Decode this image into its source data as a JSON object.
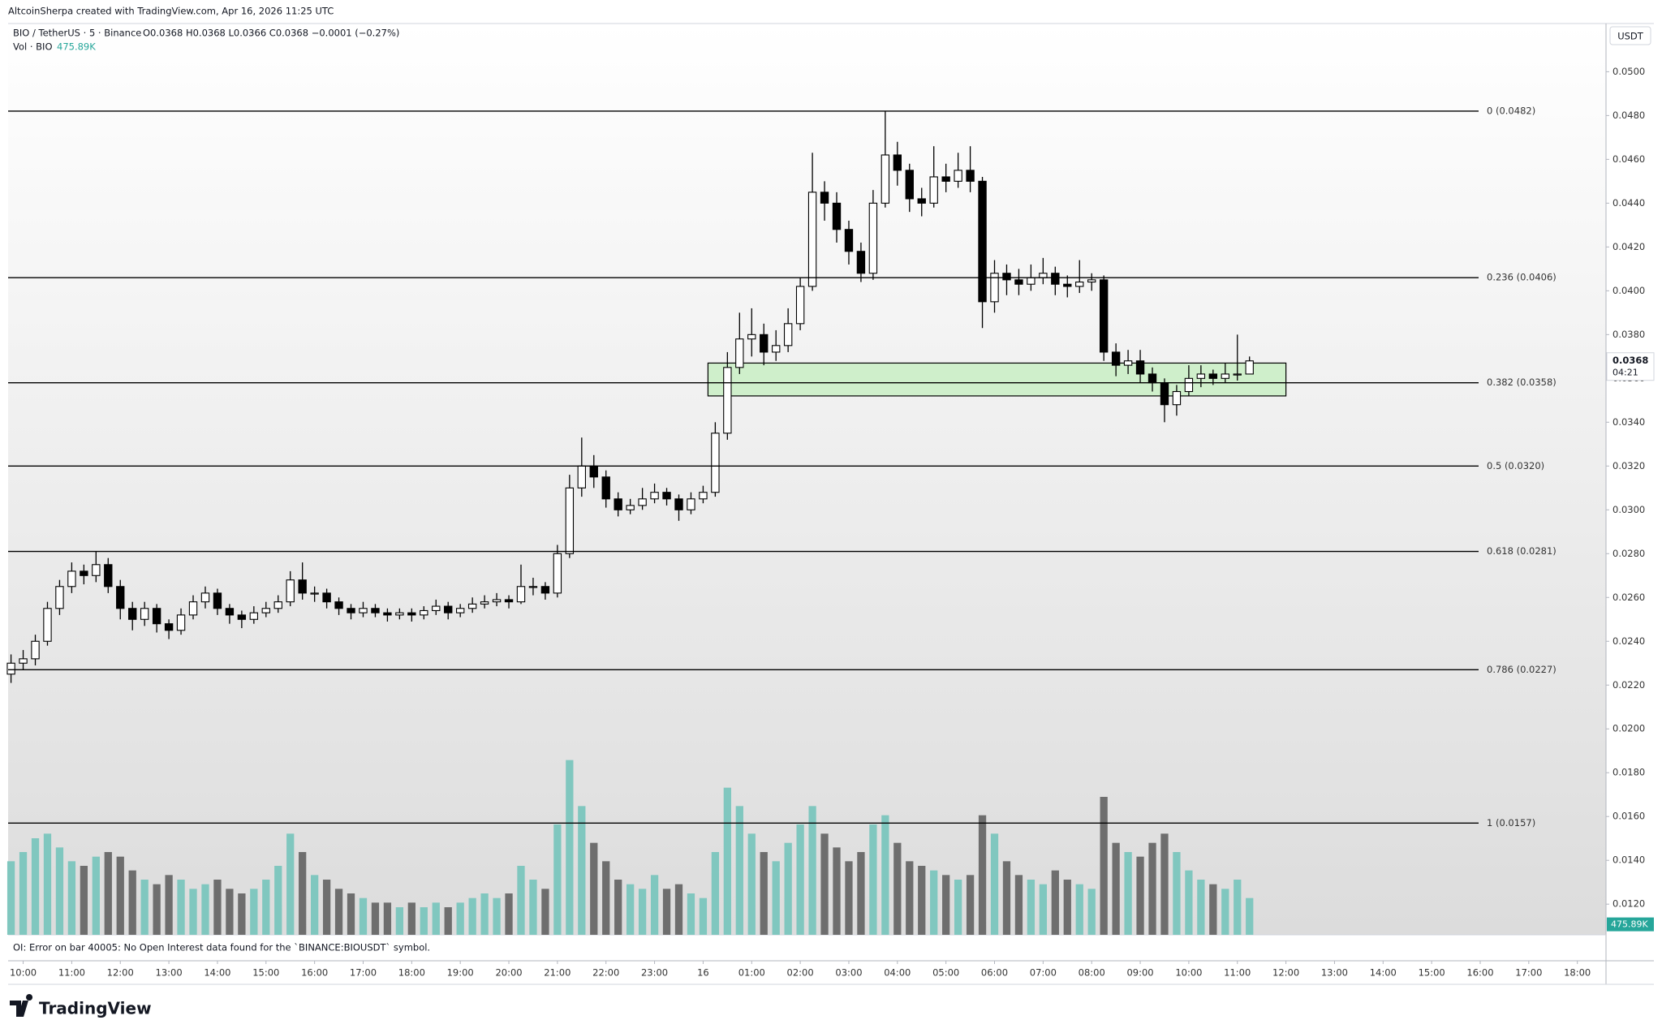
{
  "header": {
    "credit": "AltcoinSherpa created with TradingView.com, Apr 16, 2026 11:25 UTC",
    "symbol": "BIO / TetherUS · 5 · Binance",
    "ohlc": "O0.0368 H0.0368 L0.0366 C0.0368 −0.0001 (−0.27%)",
    "volume_label": "Vol · BIO"
  },
  "chart_data": {
    "type": "candlestick",
    "currency": "USDT",
    "countdown": "04:21",
    "last_price": 0.0368,
    "last_volume": {
      "value": 475.89,
      "label": "475.89K"
    },
    "xlim": [
      9.69,
      42.59
    ],
    "ylim": [
      0.0106,
      0.0522
    ],
    "volume_lim": [
      0,
      30000
    ],
    "up_color": "#ffffff",
    "down_color": "#000000",
    "wick_color": "#000000",
    "volume_up_color": "#80c7bf",
    "volume_down_color": "#6e6e6e",
    "xticks": [
      {
        "value": 10,
        "label": "10:00"
      },
      {
        "value": 11,
        "label": "11:00"
      },
      {
        "value": 12,
        "label": "12:00"
      },
      {
        "value": 13,
        "label": "13:00"
      },
      {
        "value": 14,
        "label": "14:00"
      },
      {
        "value": 15,
        "label": "15:00"
      },
      {
        "value": 16,
        "label": "16:00"
      },
      {
        "value": 17,
        "label": "17:00"
      },
      {
        "value": 18,
        "label": "18:00"
      },
      {
        "value": 19,
        "label": "19:00"
      },
      {
        "value": 20,
        "label": "20:00"
      },
      {
        "value": 21,
        "label": "21:00"
      },
      {
        "value": 22,
        "label": "22:00"
      },
      {
        "value": 23,
        "label": "23:00"
      },
      {
        "value": 24,
        "label": "16"
      },
      {
        "value": 25,
        "label": "01:00"
      },
      {
        "value": 26,
        "label": "02:00"
      },
      {
        "value": 27,
        "label": "03:00"
      },
      {
        "value": 28,
        "label": "04:00"
      },
      {
        "value": 29,
        "label": "05:00"
      },
      {
        "value": 30,
        "label": "06:00"
      },
      {
        "value": 31,
        "label": "07:00"
      },
      {
        "value": 32,
        "label": "08:00"
      },
      {
        "value": 33,
        "label": "09:00"
      },
      {
        "value": 34,
        "label": "10:00"
      },
      {
        "value": 35,
        "label": "11:00"
      },
      {
        "value": 36,
        "label": "12:00"
      },
      {
        "value": 37,
        "label": "13:00"
      },
      {
        "value": 38,
        "label": "14:00"
      },
      {
        "value": 39,
        "label": "15:00"
      },
      {
        "value": 40,
        "label": "16:00"
      },
      {
        "value": 41,
        "label": "17:00"
      },
      {
        "value": 42,
        "label": "18:00"
      }
    ],
    "yticks": [
      {
        "value": 0.012,
        "label": "0.0120"
      },
      {
        "value": 0.014,
        "label": "0.0140"
      },
      {
        "value": 0.016,
        "label": "0.0160"
      },
      {
        "value": 0.018,
        "label": "0.0180"
      },
      {
        "value": 0.02,
        "label": "0.0200"
      },
      {
        "value": 0.022,
        "label": "0.0220"
      },
      {
        "value": 0.024,
        "label": "0.0240"
      },
      {
        "value": 0.026,
        "label": "0.0260"
      },
      {
        "value": 0.028,
        "label": "0.0280"
      },
      {
        "value": 0.03,
        "label": "0.0300"
      },
      {
        "value": 0.032,
        "label": "0.0320"
      },
      {
        "value": 0.034,
        "label": "0.0340"
      },
      {
        "value": 0.036,
        "label": "0.0360"
      },
      {
        "value": 0.038,
        "label": "0.0380"
      },
      {
        "value": 0.04,
        "label": "0.0400"
      },
      {
        "value": 0.042,
        "label": "0.0420"
      },
      {
        "value": 0.044,
        "label": "0.0440"
      },
      {
        "value": 0.046,
        "label": "0.0460"
      },
      {
        "value": 0.048,
        "label": "0.0480"
      },
      {
        "value": 0.05,
        "label": "0.0500"
      }
    ],
    "levels": [
      {
        "value": 0.0482,
        "label": "0 (0.0482)"
      },
      {
        "value": 0.0406,
        "label": "0.236 (0.0406)"
      },
      {
        "value": 0.0358,
        "label": "0.382 (0.0358)"
      },
      {
        "value": 0.032,
        "label": "0.5 (0.0320)"
      },
      {
        "value": 0.0281,
        "label": "0.618 (0.0281)"
      },
      {
        "value": 0.0227,
        "label": "0.786 (0.0227)"
      },
      {
        "value": 0.0157,
        "label": "1 (0.0157)"
      }
    ],
    "zone": {
      "x": [
        24.1,
        36.0
      ],
      "y": [
        0.0352,
        0.0367
      ],
      "color": "#c9efc4"
    },
    "x": [
      9.75,
      10,
      10.25,
      10.5,
      10.75,
      11,
      11.25,
      11.5,
      11.75,
      12,
      12.25,
      12.5,
      12.75,
      13,
      13.25,
      13.5,
      13.75,
      14,
      14.25,
      14.5,
      14.75,
      15,
      15.25,
      15.5,
      15.75,
      16,
      16.25,
      16.5,
      16.75,
      17,
      17.25,
      17.5,
      17.75,
      18,
      18.25,
      18.5,
      18.75,
      19,
      19.25,
      19.5,
      19.75,
      20,
      20.25,
      20.5,
      20.75,
      21,
      21.25,
      21.5,
      21.75,
      22,
      22.25,
      22.5,
      22.75,
      23,
      23.25,
      23.5,
      23.75,
      24,
      24.25,
      24.5,
      24.75,
      25,
      25.25,
      25.5,
      25.75,
      26,
      26.25,
      26.5,
      26.75,
      27,
      27.25,
      27.5,
      27.75,
      28,
      28.25,
      28.5,
      28.75,
      29,
      29.25,
      29.5,
      29.75,
      30,
      30.25,
      30.5,
      30.75,
      31,
      31.25,
      31.5,
      31.75,
      32,
      32.25,
      32.5,
      32.75,
      33,
      33.25,
      33.5,
      33.75,
      34,
      34.25,
      34.5,
      34.75,
      35,
      35.25
    ],
    "open": [
      0.0225,
      0.023,
      0.0232,
      0.024,
      0.0255,
      0.0265,
      0.0272,
      0.027,
      0.0275,
      0.0265,
      0.0255,
      0.025,
      0.0255,
      0.0248,
      0.0245,
      0.0252,
      0.0258,
      0.0262,
      0.0255,
      0.0252,
      0.025,
      0.0253,
      0.0255,
      0.0258,
      0.0268,
      0.0262,
      0.0262,
      0.0258,
      0.0255,
      0.0253,
      0.0255,
      0.0253,
      0.0252,
      0.0253,
      0.0252,
      0.0254,
      0.0256,
      0.0253,
      0.0255,
      0.0257,
      0.0258,
      0.0259,
      0.0258,
      0.0265,
      0.0265,
      0.0262,
      0.028,
      0.031,
      0.032,
      0.0315,
      0.0305,
      0.03,
      0.0302,
      0.0305,
      0.0308,
      0.0305,
      0.03,
      0.0305,
      0.0308,
      0.0335,
      0.0365,
      0.0378,
      0.038,
      0.0372,
      0.0375,
      0.0385,
      0.0402,
      0.0445,
      0.044,
      0.0428,
      0.0418,
      0.0408,
      0.044,
      0.0462,
      0.0455,
      0.0442,
      0.044,
      0.0452,
      0.045,
      0.0455,
      0.045,
      0.0395,
      0.0408,
      0.0405,
      0.0403,
      0.0406,
      0.0408,
      0.0403,
      0.0402,
      0.0404,
      0.0405,
      0.0372,
      0.0366,
      0.0368,
      0.0362,
      0.0358,
      0.0348,
      0.0354,
      0.036,
      0.0362,
      0.036,
      0.0362,
      0.0362
    ],
    "high": [
      0.0234,
      0.0236,
      0.0243,
      0.0258,
      0.0268,
      0.0276,
      0.0275,
      0.0281,
      0.0278,
      0.0268,
      0.0258,
      0.0258,
      0.0257,
      0.025,
      0.0255,
      0.0261,
      0.0265,
      0.0264,
      0.0257,
      0.0254,
      0.0256,
      0.0258,
      0.0261,
      0.0272,
      0.0276,
      0.0265,
      0.0264,
      0.026,
      0.0257,
      0.0258,
      0.0257,
      0.0255,
      0.0255,
      0.0255,
      0.0256,
      0.0259,
      0.0258,
      0.0257,
      0.026,
      0.0261,
      0.0262,
      0.0261,
      0.0275,
      0.0269,
      0.0267,
      0.0284,
      0.0316,
      0.0333,
      0.0325,
      0.0318,
      0.0308,
      0.0305,
      0.031,
      0.0312,
      0.031,
      0.0307,
      0.0308,
      0.0311,
      0.034,
      0.0372,
      0.039,
      0.0392,
      0.0385,
      0.0382,
      0.0392,
      0.0406,
      0.0463,
      0.045,
      0.0445,
      0.0432,
      0.0422,
      0.0446,
      0.0482,
      0.0468,
      0.0458,
      0.0447,
      0.0466,
      0.0458,
      0.0463,
      0.0466,
      0.0452,
      0.0414,
      0.0412,
      0.041,
      0.0412,
      0.0415,
      0.0411,
      0.0407,
      0.0414,
      0.0408,
      0.0407,
      0.0376,
      0.0373,
      0.0373,
      0.0365,
      0.036,
      0.0357,
      0.0366,
      0.0366,
      0.0364,
      0.0367,
      0.038,
      0.037
    ],
    "low": [
      0.0221,
      0.0227,
      0.0229,
      0.0238,
      0.0252,
      0.0262,
      0.0266,
      0.0267,
      0.0262,
      0.025,
      0.0245,
      0.0247,
      0.0244,
      0.0241,
      0.0243,
      0.025,
      0.0255,
      0.0252,
      0.0248,
      0.0246,
      0.0248,
      0.0251,
      0.0253,
      0.0256,
      0.0259,
      0.0258,
      0.0255,
      0.0252,
      0.025,
      0.0251,
      0.0251,
      0.0249,
      0.025,
      0.0249,
      0.025,
      0.0252,
      0.025,
      0.0251,
      0.0253,
      0.0255,
      0.0256,
      0.0255,
      0.0257,
      0.0261,
      0.0259,
      0.026,
      0.0278,
      0.0306,
      0.031,
      0.0301,
      0.0297,
      0.0298,
      0.03,
      0.0303,
      0.0302,
      0.0295,
      0.0298,
      0.0303,
      0.0306,
      0.0332,
      0.0362,
      0.037,
      0.0366,
      0.0368,
      0.0372,
      0.0382,
      0.04,
      0.0432,
      0.0422,
      0.0412,
      0.0404,
      0.0405,
      0.0438,
      0.0448,
      0.0436,
      0.0434,
      0.0438,
      0.0445,
      0.0447,
      0.0445,
      0.0383,
      0.039,
      0.0398,
      0.0398,
      0.04,
      0.0403,
      0.0398,
      0.0397,
      0.0399,
      0.04,
      0.0368,
      0.0361,
      0.0362,
      0.0358,
      0.0354,
      0.034,
      0.0343,
      0.0352,
      0.0356,
      0.0357,
      0.0358,
      0.0359,
      0.0366
    ],
    "close": [
      0.023,
      0.0232,
      0.024,
      0.0255,
      0.0265,
      0.0272,
      0.027,
      0.0275,
      0.0265,
      0.0255,
      0.025,
      0.0255,
      0.0248,
      0.0245,
      0.0252,
      0.0258,
      0.0262,
      0.0255,
      0.0252,
      0.025,
      0.0253,
      0.0255,
      0.0258,
      0.0268,
      0.0262,
      0.0262,
      0.0258,
      0.0255,
      0.0253,
      0.0255,
      0.0253,
      0.0252,
      0.0253,
      0.0252,
      0.0254,
      0.0256,
      0.0253,
      0.0255,
      0.0257,
      0.0258,
      0.0259,
      0.0258,
      0.0265,
      0.0265,
      0.0262,
      0.028,
      0.031,
      0.032,
      0.0315,
      0.0305,
      0.03,
      0.0302,
      0.0305,
      0.0308,
      0.0305,
      0.03,
      0.0305,
      0.0308,
      0.0335,
      0.0365,
      0.0378,
      0.038,
      0.0372,
      0.0375,
      0.0385,
      0.0402,
      0.0445,
      0.044,
      0.0428,
      0.0418,
      0.0408,
      0.044,
      0.0462,
      0.0455,
      0.0442,
      0.044,
      0.0452,
      0.045,
      0.0455,
      0.045,
      0.0395,
      0.0408,
      0.0405,
      0.0403,
      0.0406,
      0.0408,
      0.0403,
      0.0402,
      0.0404,
      0.0405,
      0.0372,
      0.0366,
      0.0368,
      0.0362,
      0.0358,
      0.0348,
      0.0354,
      0.036,
      0.0362,
      0.036,
      0.0362,
      0.0362,
      0.0368
    ],
    "volume": [
      8000,
      9000,
      10500,
      11000,
      9500,
      8000,
      7500,
      8500,
      9000,
      8500,
      7000,
      6000,
      5500,
      6500,
      6000,
      5000,
      5500,
      6000,
      5000,
      4500,
      5000,
      6000,
      7500,
      11000,
      9000,
      6500,
      6000,
      5000,
      4500,
      4000,
      3500,
      3500,
      3000,
      3500,
      3000,
      3500,
      3000,
      3500,
      4000,
      4500,
      4000,
      4500,
      7500,
      6000,
      5000,
      12000,
      19000,
      14000,
      10000,
      8000,
      6000,
      5500,
      5000,
      6500,
      5000,
      5500,
      4500,
      4000,
      9000,
      16000,
      14000,
      11000,
      9000,
      8000,
      10000,
      12000,
      14000,
      11000,
      9500,
      8000,
      9000,
      12000,
      13000,
      10000,
      8000,
      7500,
      7000,
      6500,
      6000,
      6500,
      13000,
      11000,
      8000,
      6500,
      6000,
      5500,
      7000,
      6000,
      5500,
      5000,
      15000,
      10000,
      9000,
      8500,
      10000,
      11000,
      9000,
      7000,
      6000,
      5500,
      5000,
      6000,
      4000
    ]
  },
  "footer": {
    "oi_error": "OI: Error on bar 40005: No Open Interest data found for the `BINANCE:BIOUSDT` symbol.",
    "brand": "TradingView"
  }
}
